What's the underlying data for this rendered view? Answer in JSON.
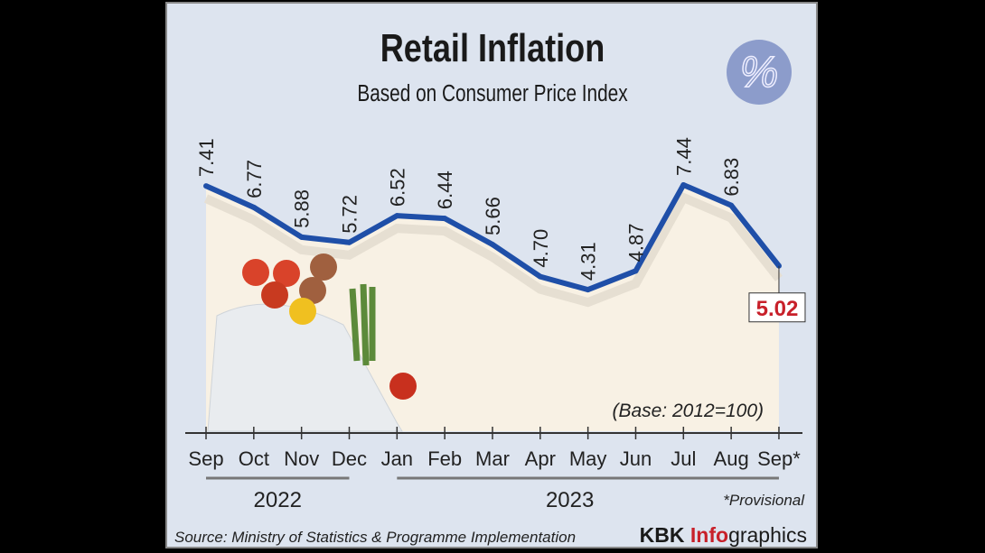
{
  "chart_data": {
    "type": "line",
    "title": "Retail Inflation",
    "subtitle": "Based on Consumer Price Index",
    "categories": [
      "Sep",
      "Oct",
      "Nov",
      "Dec",
      "Jan",
      "Feb",
      "Mar",
      "Apr",
      "May",
      "Jun",
      "Jul",
      "Aug",
      "Sep*"
    ],
    "values": [
      7.41,
      6.77,
      5.88,
      5.72,
      6.52,
      6.44,
      5.66,
      4.7,
      4.31,
      4.87,
      7.44,
      6.83,
      5.02
    ],
    "value_labels": [
      "7.41",
      "6.77",
      "5.88",
      "5.72",
      "6.52",
      "6.44",
      "5.66",
      "4.70",
      "4.31",
      "4.87",
      "7.44",
      "6.83",
      "5.02"
    ],
    "years": [
      {
        "label": "2022",
        "from": 0,
        "to": 3
      },
      {
        "label": "2023",
        "from": 4,
        "to": 12
      }
    ],
    "ylim": [
      0,
      8
    ],
    "annotation": "(Base: 2012=100)",
    "footnote": "*Provisional",
    "source": "Source: Ministry of Statistics & Programme Implementation",
    "brand_a": "KBK ",
    "brand_b": "Info",
    "brand_c": "graphics",
    "line_color": "#1f4fa8",
    "highlight_color": "#c8202a"
  }
}
